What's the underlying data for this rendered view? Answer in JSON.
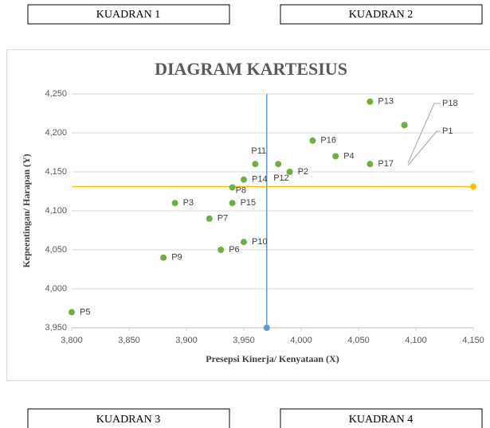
{
  "quadrants": [
    "KUADRAN 1",
    "KUADRAN 2",
    "KUADRAN 3",
    "KUADRAN 4"
  ],
  "chart_data": {
    "type": "scatter",
    "title": "DIAGRAM KARTESIUS",
    "x_label": "Presepsi Kinerja/ Kenyataan (X)",
    "y_label": "Kepeentingan/ Harapan (Y)",
    "point_labels": [
      "P1",
      "P2",
      "P3",
      "P4",
      "P5",
      "P6",
      "P7",
      "P8",
      "P9",
      "P10",
      "P11",
      "P12",
      "P13",
      "P14",
      "P15",
      "P16",
      "P17",
      "P18"
    ],
    "x": [
      4.09,
      3.99,
      3.89,
      4.03,
      3.8,
      3.93,
      3.92,
      3.94,
      3.88,
      3.95,
      3.96,
      3.98,
      4.06,
      3.95,
      3.94,
      4.01,
      4.06,
      4.09
    ],
    "values": [
      4.21,
      4.15,
      4.11,
      4.17,
      3.97,
      4.05,
      4.09,
      4.13,
      4.04,
      4.06,
      4.16,
      4.16,
      4.24,
      4.14,
      4.11,
      4.19,
      4.16,
      4.21
    ],
    "color": "#70ad47",
    "mean_x": 3.97,
    "mean_x_color": "#5b9bd5",
    "mean_y": 4.131,
    "mean_y_color": "#ffc000",
    "xlim": [
      3.8,
      4.15
    ],
    "ylim": [
      3.95,
      4.25
    ],
    "xticks": [
      {
        "value": 3.8,
        "label": "3,800"
      },
      {
        "value": 3.85,
        "label": "3,850"
      },
      {
        "value": 3.9,
        "label": "3,900"
      },
      {
        "value": 3.95,
        "label": "3,950"
      },
      {
        "value": 4.0,
        "label": "4,000"
      },
      {
        "value": 4.05,
        "label": "4,050"
      },
      {
        "value": 4.1,
        "label": "4,100"
      },
      {
        "value": 4.15,
        "label": "4,150"
      }
    ],
    "yticks": [
      {
        "value": 3.95,
        "label": "3,950"
      },
      {
        "value": 4.0,
        "label": "4,000"
      },
      {
        "value": 4.05,
        "label": "4,050"
      },
      {
        "value": 4.1,
        "label": "4,100"
      },
      {
        "value": 4.15,
        "label": "4,150"
      },
      {
        "value": 4.2,
        "label": "4,200"
      },
      {
        "value": 4.25,
        "label": "4,250"
      }
    ],
    "grid": true
  }
}
